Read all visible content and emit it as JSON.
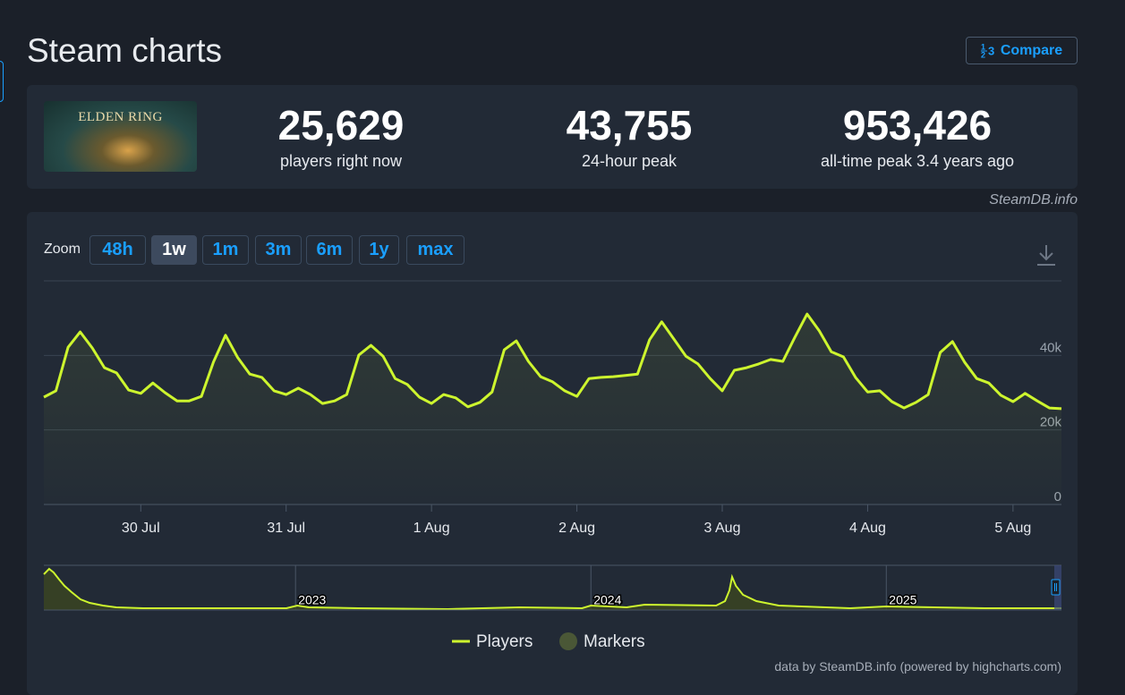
{
  "header": {
    "title": "Steam charts",
    "compare": "Compare"
  },
  "game_logo": "ELDEN RING",
  "stats": [
    {
      "value": "25,629",
      "label": "players right now"
    },
    {
      "value": "43,755",
      "label": "24-hour peak"
    },
    {
      "value": "953,426",
      "label": "all-time peak 3.4 years ago"
    }
  ],
  "source": "SteamDB.info",
  "zoom": {
    "label": "Zoom",
    "options": [
      "48h",
      "1w",
      "1m",
      "3m",
      "6m",
      "1y",
      "max"
    ],
    "active": 1
  },
  "chart_data": {
    "type": "line",
    "x": [
      -16,
      -14,
      -12,
      -10,
      -8,
      -6,
      -4,
      -2,
      0,
      2,
      4,
      6,
      8,
      10,
      12,
      14,
      16,
      18,
      20,
      22,
      24,
      26,
      28,
      30,
      32,
      34,
      36,
      38,
      40,
      42,
      44,
      46,
      48,
      50,
      52,
      54,
      56,
      58,
      60,
      62,
      64,
      66,
      68,
      70,
      72,
      74,
      76,
      78,
      80,
      82,
      84,
      86,
      88,
      90,
      92,
      94,
      96,
      98,
      100,
      102,
      104,
      106,
      108,
      110,
      112,
      114,
      116,
      118,
      120,
      122,
      124,
      126,
      128,
      130,
      132,
      134,
      136,
      138,
      140,
      142,
      144,
      146,
      148,
      150,
      152
    ],
    "series": [
      {
        "name": "Players",
        "color": "#cdf52e",
        "values": [
          28800,
          30500,
          42200,
          46300,
          42000,
          36700,
          35300,
          30700,
          29800,
          32600,
          30000,
          27800,
          27800,
          29000,
          38200,
          45400,
          39400,
          35000,
          34100,
          30500,
          29500,
          31200,
          29500,
          27100,
          27800,
          29500,
          40100,
          42700,
          39800,
          33800,
          32200,
          28800,
          27100,
          29500,
          28600,
          26200,
          27400,
          30200,
          41500,
          43900,
          38400,
          34300,
          32900,
          30500,
          29000,
          33800,
          34100,
          34300,
          34600,
          35000,
          44200,
          49000,
          44400,
          39800,
          37700,
          33800,
          30500,
          36000,
          36700,
          37700,
          38900,
          38400,
          44900,
          51100,
          46600,
          41000,
          39600,
          34100,
          30200,
          30500,
          27600,
          25900,
          27400,
          29500,
          40800,
          43700,
          38200,
          33800,
          32600,
          29300,
          27600,
          29800,
          27800,
          25900,
          25700
        ]
      }
    ],
    "xlim": [
      -16,
      152
    ],
    "xticks": [
      {
        "value": 0,
        "label": "30 Jul"
      },
      {
        "value": 24,
        "label": "31 Jul"
      },
      {
        "value": 48,
        "label": "1 Aug"
      },
      {
        "value": 72,
        "label": "2 Aug"
      },
      {
        "value": 96,
        "label": "3 Aug"
      },
      {
        "value": 120,
        "label": "4 Aug"
      },
      {
        "value": 144,
        "label": "5 Aug"
      }
    ],
    "ylim": [
      0,
      60000
    ],
    "yticks": [
      0,
      {
        "value": 20000,
        "label": "20k"
      },
      {
        "value": 40000,
        "label": "40k"
      }
    ],
    "grid": true,
    "marker_legend": {
      "name": "Markers",
      "color": "#4a5736"
    }
  },
  "navigator": {
    "x": [
      2022.148,
      2022.166,
      2022.181,
      2022.2,
      2022.218,
      2022.242,
      2022.272,
      2022.303,
      2022.348,
      2022.393,
      2022.484,
      2022.757,
      2022.969,
      2023.006,
      2023.045,
      2023.212,
      2023.515,
      2023.758,
      2023.97,
      2024.0,
      2024.121,
      2024.182,
      2024.424,
      2024.454,
      2024.469,
      2024.478,
      2024.491,
      2024.515,
      2024.56,
      2024.636,
      2024.878,
      2024.999,
      2025.333,
      2025.593
    ],
    "values": [
      800000,
      920000,
      840000,
      680000,
      540000,
      400000,
      240000,
      160000,
      100000,
      60000,
      40000,
      40000,
      40000,
      100000,
      60000,
      40000,
      20000,
      60000,
      40000,
      100000,
      60000,
      120000,
      100000,
      200000,
      440000,
      740000,
      540000,
      340000,
      200000,
      100000,
      40000,
      80000,
      40000,
      40000
    ],
    "xlim": [
      2022.148,
      2025.593
    ],
    "ylim": [
      0,
      1000000
    ],
    "xticks": [
      2023,
      2024,
      2025
    ]
  },
  "credit": "data by SteamDB.info (powered by highcharts.com)"
}
